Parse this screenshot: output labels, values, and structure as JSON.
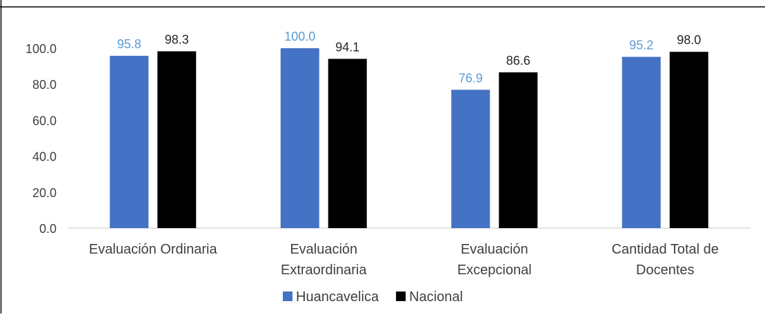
{
  "chart_data": {
    "type": "bar",
    "categories": [
      [
        "Evaluación Ordinaria"
      ],
      [
        "Evaluación",
        "Extraordinaria"
      ],
      [
        "Evaluación",
        "Excepcional"
      ],
      [
        "Cantidad Total de",
        "Docentes"
      ]
    ],
    "series": [
      {
        "name": "Huancavelica",
        "values": [
          95.8,
          100.0,
          76.9,
          95.2
        ],
        "color": "#4472C4",
        "label_color": "#5B9BD5"
      },
      {
        "name": "Nacional",
        "values": [
          98.3,
          94.1,
          86.6,
          98.0
        ],
        "color": "#000000",
        "label_color": "#262626"
      }
    ],
    "ylim": [
      0,
      100
    ],
    "yticks": [
      "0.0",
      "20.0",
      "40.0",
      "60.0",
      "80.0",
      "100.0"
    ],
    "grid": false,
    "legend_position": "bottom"
  },
  "colors": {
    "frame_border": "#000000",
    "axis_line": "#D9D9D9",
    "text": "#404040"
  }
}
